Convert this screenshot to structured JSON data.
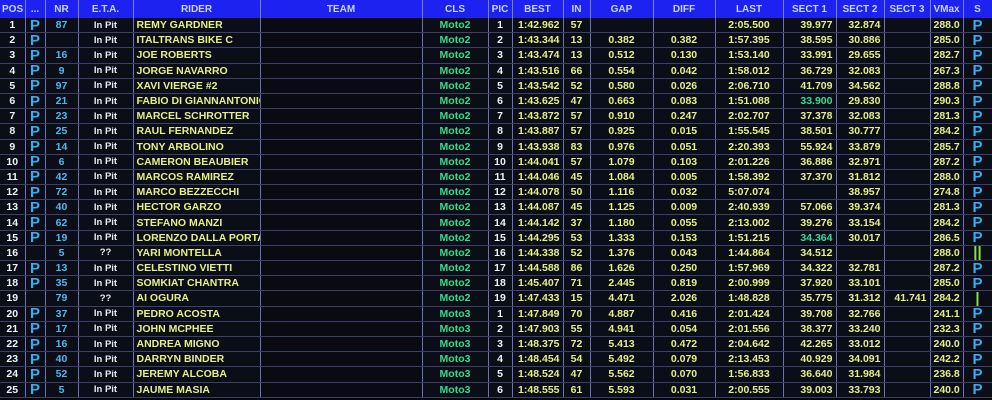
{
  "headers": [
    "POS",
    "...",
    "NR",
    "E.T.A.",
    "RIDER",
    "TEAM",
    "CLS",
    "PIC",
    "BEST",
    "IN",
    "GAP",
    "DIFF",
    "LAST",
    "SECT 1",
    "SECT 2",
    "SECT 3",
    "VMax",
    "S"
  ],
  "colors": {
    "header_bg": "#1e22f0",
    "text": "#e4ef86",
    "class": "#35dc8a",
    "pit_flag": "#34aef0",
    "best_sector": "#35dc9a"
  },
  "rows": [
    {
      "pos": "1",
      "flag": "P",
      "nr": "87",
      "eta": "In Pit",
      "rider": "REMY GARDNER",
      "team": "",
      "cls": "Moto2",
      "pic": "1",
      "best": "1:42.962",
      "in": "57",
      "gap": "",
      "diff": "",
      "last": "2:05.500",
      "s1": "39.977",
      "s2": "32.874",
      "s3": "",
      "vmax": "288.0",
      "s": "P"
    },
    {
      "pos": "2",
      "flag": "P",
      "nr": "",
      "eta": "In Pit",
      "rider": "ITALTRANS BIKE C",
      "team": "",
      "cls": "Moto2",
      "pic": "2",
      "best": "1:43.344",
      "in": "13",
      "gap": "0.382",
      "diff": "0.382",
      "last": "1:57.395",
      "s1": "38.595",
      "s2": "30.886",
      "s3": "",
      "vmax": "285.0",
      "s": "P"
    },
    {
      "pos": "3",
      "flag": "P",
      "nr": "16",
      "eta": "In Pit",
      "rider": "JOE ROBERTS",
      "team": "",
      "cls": "Moto2",
      "pic": "3",
      "best": "1:43.474",
      "in": "13",
      "gap": "0.512",
      "diff": "0.130",
      "last": "1:53.140",
      "s1": "33.991",
      "s2": "29.655",
      "s3": "",
      "vmax": "282.7",
      "s": "P"
    },
    {
      "pos": "4",
      "flag": "P",
      "nr": "9",
      "eta": "In Pit",
      "rider": "JORGE NAVARRO",
      "team": "",
      "cls": "Moto2",
      "pic": "4",
      "best": "1:43.516",
      "in": "66",
      "gap": "0.554",
      "diff": "0.042",
      "last": "1:58.012",
      "s1": "36.729",
      "s2": "32.083",
      "s3": "",
      "vmax": "267.3",
      "s": "P"
    },
    {
      "pos": "5",
      "flag": "P",
      "nr": "97",
      "eta": "In Pit",
      "rider": "XAVI VIERGE #2",
      "team": "",
      "cls": "Moto2",
      "pic": "5",
      "best": "1:43.542",
      "in": "52",
      "gap": "0.580",
      "diff": "0.026",
      "last": "2:06.710",
      "s1": "41.709",
      "s2": "34.562",
      "s3": "",
      "vmax": "288.8",
      "s": "P"
    },
    {
      "pos": "6",
      "flag": "P",
      "nr": "21",
      "eta": "In Pit",
      "rider": "FABIO DI GIANNANTONIO",
      "team": "",
      "cls": "Moto2",
      "pic": "6",
      "best": "1:43.625",
      "in": "47",
      "gap": "0.663",
      "diff": "0.083",
      "last": "1:51.088",
      "s1": "33.900",
      "s1_best": true,
      "s2": "29.830",
      "s3": "",
      "vmax": "290.3",
      "s": "P"
    },
    {
      "pos": "7",
      "flag": "P",
      "nr": "23",
      "eta": "In Pit",
      "rider": "MARCEL SCHROTTER",
      "team": "",
      "cls": "Moto2",
      "pic": "7",
      "best": "1:43.872",
      "in": "57",
      "gap": "0.910",
      "diff": "0.247",
      "last": "2:02.707",
      "s1": "37.378",
      "s2": "32.083",
      "s3": "",
      "vmax": "281.3",
      "s": "P"
    },
    {
      "pos": "8",
      "flag": "P",
      "nr": "25",
      "eta": "In Pit",
      "rider": "RAUL FERNANDEZ",
      "team": "",
      "cls": "Moto2",
      "pic": "8",
      "best": "1:43.887",
      "in": "57",
      "gap": "0.925",
      "diff": "0.015",
      "last": "1:55.545",
      "s1": "38.501",
      "s2": "30.777",
      "s3": "",
      "vmax": "284.2",
      "s": "P"
    },
    {
      "pos": "9",
      "flag": "P",
      "nr": "14",
      "eta": "In Pit",
      "rider": "TONY ARBOLINO",
      "team": "",
      "cls": "Moto2",
      "pic": "9",
      "best": "1:43.938",
      "in": "83",
      "gap": "0.976",
      "diff": "0.051",
      "last": "2:20.393",
      "s1": "55.924",
      "s2": "33.879",
      "s3": "",
      "vmax": "285.7",
      "s": "P"
    },
    {
      "pos": "10",
      "flag": "P",
      "nr": "6",
      "eta": "In Pit",
      "rider": "CAMERON BEAUBIER",
      "team": "",
      "cls": "Moto2",
      "pic": "10",
      "best": "1:44.041",
      "in": "57",
      "gap": "1.079",
      "diff": "0.103",
      "last": "2:01.226",
      "s1": "36.886",
      "s2": "32.971",
      "s3": "",
      "vmax": "287.2",
      "s": "P"
    },
    {
      "pos": "11",
      "flag": "P",
      "nr": "42",
      "eta": "In Pit",
      "rider": "MARCOS RAMIREZ",
      "team": "",
      "cls": "Moto2",
      "pic": "11",
      "best": "1:44.046",
      "in": "45",
      "gap": "1.084",
      "diff": "0.005",
      "last": "1:58.392",
      "s1": "37.370",
      "s2": "31.812",
      "s3": "",
      "vmax": "288.0",
      "s": "P"
    },
    {
      "pos": "12",
      "flag": "P",
      "nr": "72",
      "eta": "In Pit",
      "rider": "MARCO BEZZECCHI",
      "team": "",
      "cls": "Moto2",
      "pic": "12",
      "best": "1:44.078",
      "in": "50",
      "gap": "1.116",
      "diff": "0.032",
      "last": "5:07.074",
      "s1": "",
      "s2": "38.957",
      "s3": "",
      "vmax": "274.8",
      "s": "P"
    },
    {
      "pos": "13",
      "flag": "P",
      "nr": "40",
      "eta": "In Pit",
      "rider": "HECTOR GARZO",
      "team": "",
      "cls": "Moto2",
      "pic": "13",
      "best": "1:44.087",
      "in": "45",
      "gap": "1.125",
      "diff": "0.009",
      "last": "2:40.939",
      "s1": "57.066",
      "s2": "39.374",
      "s3": "",
      "vmax": "281.3",
      "s": "P"
    },
    {
      "pos": "14",
      "flag": "P",
      "nr": "62",
      "eta": "In Pit",
      "rider": "STEFANO MANZI",
      "team": "",
      "cls": "Moto2",
      "pic": "14",
      "best": "1:44.142",
      "in": "37",
      "gap": "1.180",
      "diff": "0.055",
      "last": "2:13.002",
      "s1": "39.276",
      "s2": "33.154",
      "s3": "",
      "vmax": "284.2",
      "s": "P"
    },
    {
      "pos": "15",
      "flag": "P",
      "nr": "19",
      "eta": "In Pit",
      "rider": "LORENZO DALLA PORTA",
      "team": "",
      "cls": "Moto2",
      "pic": "15",
      "best": "1:44.295",
      "in": "53",
      "gap": "1.333",
      "diff": "0.153",
      "last": "1:51.215",
      "s1": "34.364",
      "s1_best": true,
      "s2": "30.017",
      "s3": "",
      "vmax": "286.5",
      "s": "P"
    },
    {
      "pos": "16",
      "flag": "",
      "nr": "5",
      "eta": "??",
      "rider": "YARI MONTELLA",
      "team": "",
      "cls": "Moto2",
      "pic": "16",
      "best": "1:44.338",
      "in": "52",
      "gap": "1.376",
      "diff": "0.043",
      "last": "1:44.864",
      "s1": "34.512",
      "s2": "",
      "s3": "",
      "vmax": "288.0",
      "s": "||"
    },
    {
      "pos": "17",
      "flag": "P",
      "nr": "13",
      "eta": "In Pit",
      "rider": "CELESTINO VIETTI",
      "team": "",
      "cls": "Moto2",
      "pic": "17",
      "best": "1:44.588",
      "in": "86",
      "gap": "1.626",
      "diff": "0.250",
      "last": "1:57.969",
      "s1": "34.322",
      "s2": "32.781",
      "s3": "",
      "vmax": "287.2",
      "s": "P"
    },
    {
      "pos": "18",
      "flag": "P",
      "nr": "35",
      "eta": "In Pit",
      "rider": "SOMKIAT CHANTRA",
      "team": "",
      "cls": "Moto2",
      "pic": "18",
      "best": "1:45.407",
      "in": "71",
      "gap": "2.445",
      "diff": "0.819",
      "last": "2:00.999",
      "s1": "37.920",
      "s2": "33.101",
      "s3": "",
      "vmax": "285.0",
      "s": "P"
    },
    {
      "pos": "19",
      "flag": "",
      "nr": "79",
      "eta": "??",
      "rider": "AI OGURA",
      "team": "",
      "cls": "Moto2",
      "pic": "19",
      "best": "1:47.433",
      "in": "15",
      "gap": "4.471",
      "diff": "2.026",
      "last": "1:48.828",
      "s1": "35.775",
      "s2": "31.312",
      "s3": "41.741",
      "vmax": "284.2",
      "s": "|"
    },
    {
      "pos": "20",
      "flag": "P",
      "nr": "37",
      "eta": "In Pit",
      "rider": "PEDRO ACOSTA",
      "team": "",
      "cls": "Moto3",
      "pic": "1",
      "best": "1:47.849",
      "in": "70",
      "gap": "4.887",
      "diff": "0.416",
      "last": "2:01.424",
      "s1": "39.708",
      "s2": "32.766",
      "s3": "",
      "vmax": "241.1",
      "s": "P"
    },
    {
      "pos": "21",
      "flag": "P",
      "nr": "17",
      "eta": "In Pit",
      "rider": "JOHN MCPHEE",
      "team": "",
      "cls": "Moto3",
      "pic": "2",
      "best": "1:47.903",
      "in": "55",
      "gap": "4.941",
      "diff": "0.054",
      "last": "2:01.556",
      "s1": "38.377",
      "s2": "33.240",
      "s3": "",
      "vmax": "232.3",
      "s": "P"
    },
    {
      "pos": "22",
      "flag": "P",
      "nr": "16",
      "eta": "In Pit",
      "rider": "ANDREA MIGNO",
      "team": "",
      "cls": "Moto3",
      "pic": "3",
      "best": "1:48.375",
      "in": "72",
      "gap": "5.413",
      "diff": "0.472",
      "last": "2:04.642",
      "s1": "42.265",
      "s2": "33.012",
      "s3": "",
      "vmax": "240.0",
      "s": "P"
    },
    {
      "pos": "23",
      "flag": "P",
      "nr": "40",
      "eta": "In Pit",
      "rider": "DARRYN BINDER",
      "team": "",
      "cls": "Moto3",
      "pic": "4",
      "best": "1:48.454",
      "in": "54",
      "gap": "5.492",
      "diff": "0.079",
      "last": "2:13.453",
      "s1": "40.929",
      "s2": "34.091",
      "s3": "",
      "vmax": "242.2",
      "s": "P"
    },
    {
      "pos": "24",
      "flag": "P",
      "nr": "52",
      "eta": "In Pit",
      "rider": "JEREMY ALCOBA",
      "team": "",
      "cls": "Moto3",
      "pic": "5",
      "best": "1:48.524",
      "in": "47",
      "gap": "5.562",
      "diff": "0.070",
      "last": "1:56.833",
      "s1": "36.640",
      "s2": "31.984",
      "s3": "",
      "vmax": "236.8",
      "s": "P"
    },
    {
      "pos": "25",
      "flag": "P",
      "nr": "5",
      "eta": "In Pit",
      "rider": "JAUME MASIA",
      "team": "",
      "cls": "Moto3",
      "pic": "6",
      "best": "1:48.555",
      "in": "61",
      "gap": "5.593",
      "diff": "0.031",
      "last": "2:00.555",
      "s1": "39.003",
      "s2": "33.793",
      "s3": "",
      "vmax": "240.0",
      "s": "P"
    }
  ]
}
